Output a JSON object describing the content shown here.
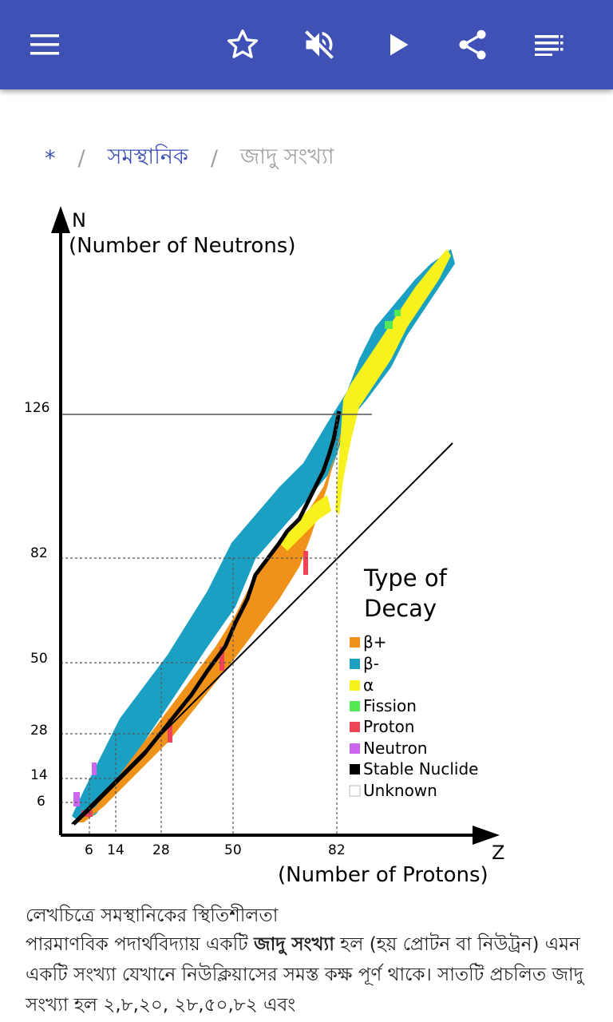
{
  "app_bar": {
    "background": "#3f51b5",
    "icons": [
      "menu-icon",
      "star-outline-icon",
      "volume-off-icon",
      "play-icon",
      "share-icon",
      "playlist-icon"
    ]
  },
  "breadcrumb": {
    "home": "*",
    "separator": "/",
    "parent": "সমস্থানিক",
    "current": "জাদু সংখ্যা"
  },
  "figure": {
    "y_axis_title": "N",
    "y_axis_subtitle": "(Number of Neutrons)",
    "x_axis_title": "Z",
    "x_axis_subtitle": "(Number of Protons)",
    "y_ticks": [
      "126",
      "82",
      "50",
      "28",
      "14",
      "6"
    ],
    "x_ticks": [
      "6",
      "14",
      "28",
      "50",
      "82"
    ],
    "legend_title_1": "Type of",
    "legend_title_2": "Decay",
    "legend": [
      {
        "label": "β+",
        "color": "#f0921a"
      },
      {
        "label": "β-",
        "color": "#1aa0c2"
      },
      {
        "label": "α",
        "color": "#f7f21e"
      },
      {
        "label": "Fission",
        "color": "#55e855"
      },
      {
        "label": "Proton",
        "color": "#ee4455"
      },
      {
        "label": "Neutron",
        "color": "#cc66ee"
      },
      {
        "label": "Stable Nuclide",
        "color": "#000000"
      },
      {
        "label": "Unknown",
        "color": "#ffffff"
      }
    ]
  },
  "caption": "লেখচিত্রে সমস্থানিকের স্থিতিশীলতা",
  "article": {
    "lead": "পারমাণবিক পদার্থবিদ্যায় একটি ",
    "bold": "জাদু সংখ্যা",
    "rest": " হল (হয় প্রোটন বা নিউট্রন) এমন একটি সংখ্যা যেখানে নিউক্লিয়াসের সমস্ত কক্ষ পূর্ণ থাকে। সাতটি প্রচলিত জাদু সংখ্যা হল ২,৮,২০, ২৮,৫০,৮২ এবং"
  }
}
